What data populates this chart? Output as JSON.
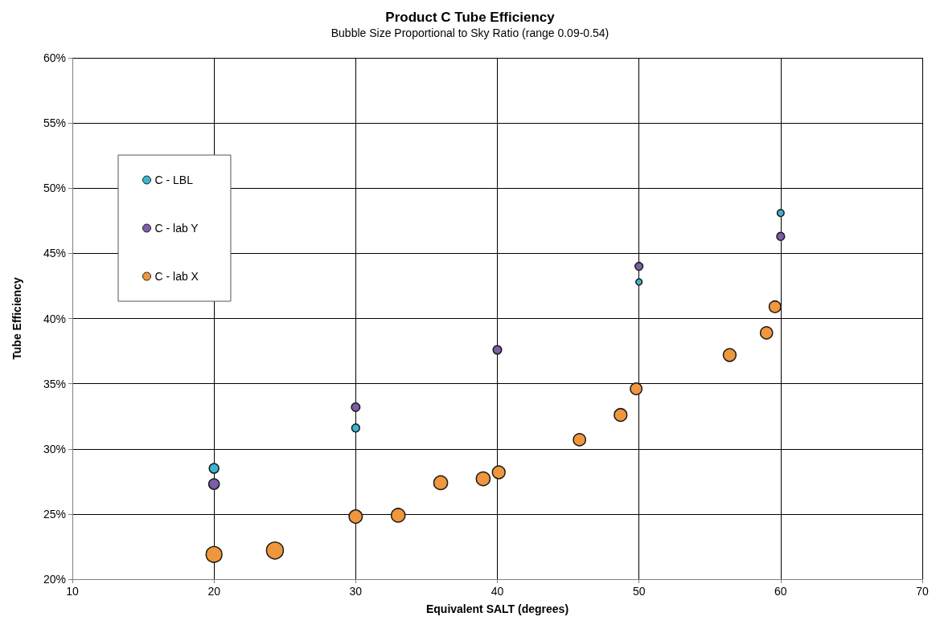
{
  "chart_data": {
    "type": "bubble",
    "title": "Product C Tube Efficiency",
    "subtitle": "Bubble Size Proportional to Sky Ratio (range 0.09-0.54)",
    "xlabel": "Equivalent SALT (degrees)",
    "ylabel": "Tube Efficiency",
    "xlim": [
      10,
      70
    ],
    "xticks": [
      10,
      20,
      30,
      40,
      50,
      60,
      70
    ],
    "ylim": [
      20,
      60
    ],
    "yticks": [
      {
        "value": 20,
        "label": "20%"
      },
      {
        "value": 25,
        "label": "25%"
      },
      {
        "value": 30,
        "label": "30%"
      },
      {
        "value": 35,
        "label": "35%"
      },
      {
        "value": 40,
        "label": "40%"
      },
      {
        "value": 45,
        "label": "45%"
      },
      {
        "value": 50,
        "label": "50%"
      },
      {
        "value": 55,
        "label": "55%"
      },
      {
        "value": 60,
        "label": "60%"
      }
    ],
    "grid": true,
    "legend": "top left",
    "marker": "circle",
    "series": [
      {
        "name": "C - LBL",
        "color": "#3cb4d0",
        "x": [
          20,
          30,
          50,
          60
        ],
        "values": [
          28.5,
          31.6,
          42.8,
          48.1
        ],
        "sizes": [
          0.32,
          0.22,
          0.14,
          0.17
        ]
      },
      {
        "name": "C - lab Y",
        "color": "#7b5ea7",
        "x": [
          20,
          30,
          40,
          50,
          60
        ],
        "values": [
          27.3,
          33.2,
          37.6,
          44.0,
          46.3
        ],
        "sizes": [
          0.39,
          0.25,
          0.25,
          0.22,
          0.22
        ]
      },
      {
        "name": "C - lab X",
        "color": "#f0963c",
        "x": [
          20,
          24.3,
          30,
          33,
          36,
          39,
          40.1,
          45.8,
          48.7,
          49.8,
          56.4,
          59,
          59.6
        ],
        "values": [
          21.9,
          22.2,
          24.8,
          24.9,
          27.4,
          27.7,
          28.2,
          30.7,
          32.6,
          34.6,
          37.2,
          38.9,
          40.9
        ],
        "sizes": [
          0.88,
          1,
          0.61,
          0.66,
          0.66,
          0.66,
          0.56,
          0.52,
          0.56,
          0.47,
          0.56,
          0.52,
          0.47
        ]
      }
    ]
  }
}
